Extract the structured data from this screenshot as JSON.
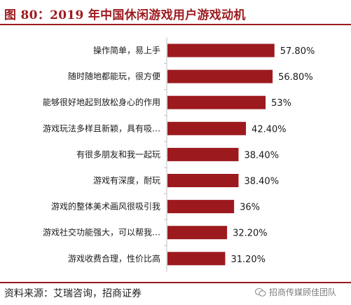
{
  "header": {
    "title": "图 80：2019 年中国休闲游戏用户游戏动机"
  },
  "chart_data": {
    "type": "bar",
    "orientation": "horizontal",
    "categories": [
      "操作简单，易上手",
      "随时随地都能玩，很方便",
      "能够很好地起到放松身心的作用",
      "游戏玩法多样且新颖，具有吸…",
      "有很多朋友和我一起玩",
      "游戏有深度，耐玩",
      "游戏的整体美术画风很吸引我",
      "游戏社交功能强大，可以帮我…",
      "游戏收费合理，性价比高"
    ],
    "values": [
      57.8,
      56.8,
      53,
      42.4,
      38.4,
      38.4,
      36,
      32.2,
      31.2
    ],
    "value_labels": [
      "57.80%",
      "56.80%",
      "53%",
      "42.40%",
      "38.40%",
      "38.40%",
      "36%",
      "32.20%",
      "31.20%"
    ],
    "xlim": [
      0,
      70
    ],
    "bar_color": "#9c1a1e",
    "grid": false,
    "legend": "none"
  },
  "footer": {
    "source": "资料来源：艾瑞咨询，招商证券",
    "watermark": "招商传媒顾佳团队"
  }
}
